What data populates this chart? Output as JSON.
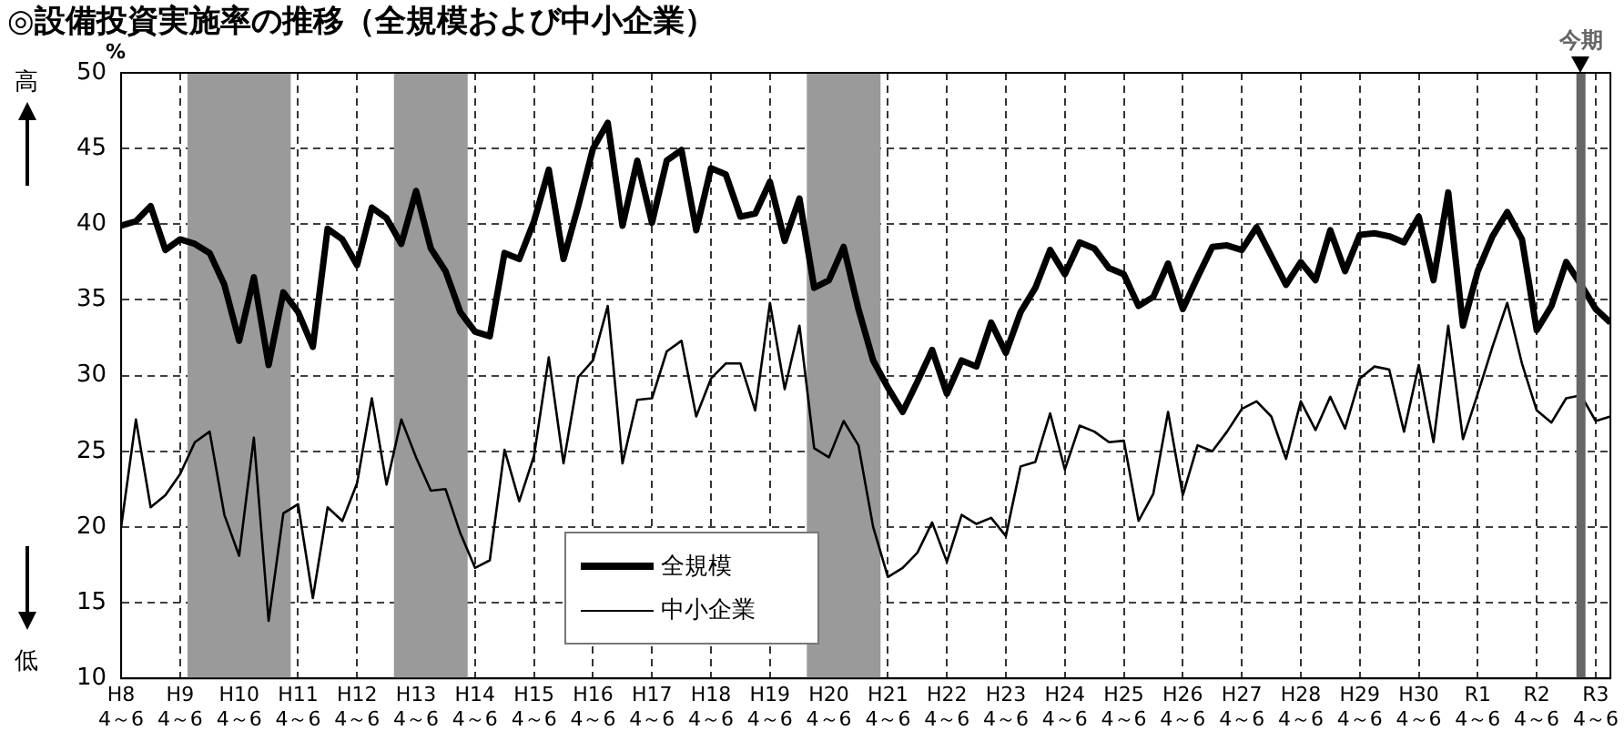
{
  "chart_data": {
    "type": "line",
    "title": "◎設備投資実施率の推移（全規模および中小企業）",
    "ylabel": "%",
    "annotations": [
      "高",
      "低",
      "今期"
    ],
    "categories": [
      "H8 4～6",
      null,
      null,
      null,
      "H9 4～6",
      null,
      null,
      null,
      "H10 4～6",
      null,
      null,
      null,
      "H11 4～6",
      null,
      null,
      null,
      "H12 4～6",
      null,
      null,
      null,
      "H13 4～6",
      null,
      null,
      null,
      "H14 4～6",
      null,
      null,
      null,
      "H15 4～6",
      null,
      null,
      null,
      "H16 4～6",
      null,
      null,
      null,
      "H17 4～6",
      null,
      null,
      null,
      "H18 4～6",
      null,
      null,
      null,
      "H19 4～6",
      null,
      null,
      null,
      "H20 4～6",
      null,
      null,
      null,
      "H21 4～6",
      null,
      null,
      null,
      "H22 4～6",
      null,
      null,
      null,
      "H23 4～6",
      null,
      null,
      null,
      "H24 4～6",
      null,
      null,
      null,
      "H25 4～6",
      null,
      null,
      null,
      "H26 4～6",
      null,
      null,
      null,
      "H27 4～6",
      null,
      null,
      null,
      "H28 4～6",
      null,
      null,
      null,
      "H29 4～6",
      null,
      null,
      null,
      "H30 4～6",
      null,
      null,
      null,
      "R1 4～6",
      null,
      null,
      null,
      "R2 4～6",
      null,
      null,
      null,
      "R3 4～6",
      null
    ],
    "series": [
      {
        "name": "全規模",
        "color": "#000000",
        "values": [
          39.9,
          40.2,
          41.2,
          38.3,
          39.0,
          38.7,
          38.1,
          36.0,
          32.3,
          36.5,
          30.7,
          35.5,
          34.2,
          31.9,
          39.7,
          39.0,
          37.3,
          41.1,
          40.4,
          38.7,
          42.2,
          38.4,
          36.9,
          34.2,
          32.9,
          32.6,
          38.1,
          37.7,
          40.2,
          43.6,
          37.7,
          41.2,
          45.0,
          46.7,
          39.9,
          44.2,
          40.1,
          44.2,
          44.9,
          39.6,
          43.7,
          43.3,
          40.5,
          40.7,
          42.8,
          38.9,
          41.7,
          35.8,
          36.3,
          38.5,
          34.4,
          31.0,
          29.2,
          27.6,
          29.6,
          31.7,
          28.8,
          31.0,
          30.6,
          33.5,
          31.5,
          34.2,
          35.8,
          38.3,
          36.7,
          38.8,
          38.4,
          37.1,
          36.7,
          34.6,
          35.2,
          37.4,
          34.4,
          36.5,
          38.5,
          38.6,
          38.3,
          39.8,
          37.9,
          36.0,
          37.5,
          36.3,
          39.6,
          36.9,
          39.3,
          39.4,
          39.2,
          38.8,
          40.5,
          36.3,
          42.1,
          33.3,
          36.9,
          39.2,
          40.8,
          39.0,
          33.0,
          34.6,
          37.5,
          36.0,
          34.4,
          33.5
        ]
      },
      {
        "name": "中小企業",
        "color": "#000000",
        "values": [
          20.0,
          27.1,
          21.3,
          22.1,
          23.5,
          25.6,
          26.3,
          20.8,
          18.1,
          25.9,
          13.8,
          20.9,
          21.5,
          15.3,
          21.3,
          20.4,
          22.9,
          28.5,
          22.8,
          27.1,
          24.6,
          22.4,
          22.5,
          19.6,
          17.3,
          17.8,
          25.1,
          21.7,
          24.7,
          31.2,
          24.2,
          29.9,
          31.0,
          34.6,
          24.2,
          28.4,
          28.5,
          31.6,
          32.3,
          27.3,
          29.8,
          30.8,
          30.8,
          27.7,
          34.8,
          29.1,
          33.3,
          25.2,
          24.6,
          27.0,
          25.4,
          20.0,
          16.7,
          17.3,
          18.3,
          20.3,
          17.7,
          20.8,
          20.2,
          20.6,
          19.4,
          24.0,
          24.3,
          27.5,
          23.8,
          26.7,
          26.3,
          25.6,
          25.7,
          20.4,
          22.2,
          27.6,
          22.1,
          25.4,
          25.0,
          26.3,
          27.8,
          28.3,
          27.3,
          24.5,
          28.3,
          26.4,
          28.6,
          26.5,
          29.8,
          30.6,
          30.4,
          26.3,
          30.7,
          25.6,
          33.3,
          25.8,
          28.8,
          31.9,
          34.8,
          30.8,
          27.7,
          26.9,
          28.5,
          28.7,
          27.0,
          27.3
        ]
      }
    ],
    "ylim": [
      10,
      50
    ],
    "yticks": [
      10,
      15,
      20,
      25,
      30,
      35,
      40,
      45,
      50
    ],
    "grid": true,
    "legend": "bottom",
    "marker": "none",
    "line_style": "solid"
  }
}
